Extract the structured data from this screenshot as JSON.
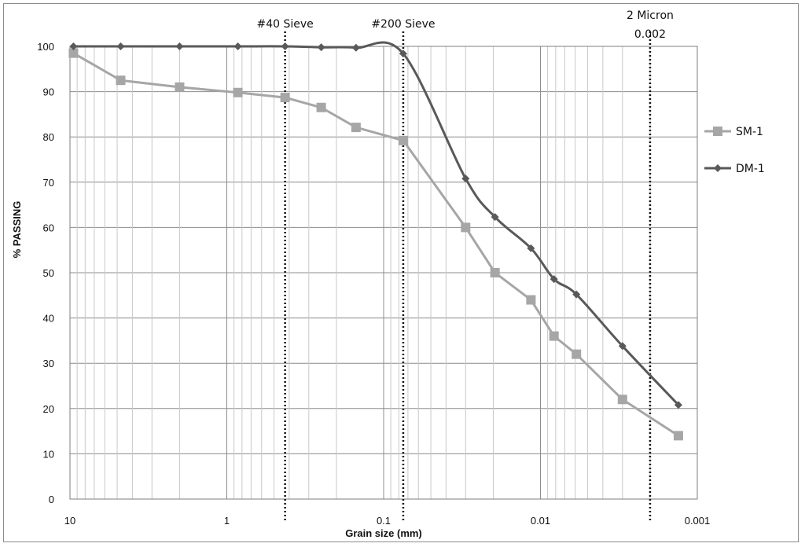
{
  "chart_data": {
    "type": "line",
    "xlabel": "Grain size (mm)",
    "ylabel": "% PASSING",
    "x_scale": "log",
    "x_reversed": true,
    "xlim": [
      10,
      0.001
    ],
    "ylim": [
      0,
      100
    ],
    "x_ticks": [
      "10",
      "1",
      "0.1",
      "0.01",
      "0.001"
    ],
    "x_tick_values": [
      10,
      1,
      0.1,
      0.01,
      0.001
    ],
    "y_ticks": [
      0,
      10,
      20,
      30,
      40,
      50,
      60,
      70,
      80,
      90,
      100
    ],
    "grid": true,
    "legend_position": "right",
    "series": [
      {
        "name": "SM-1",
        "color": "#a6a6a6",
        "marker": "square",
        "smooth": false,
        "x": [
          9.5,
          4.75,
          2.0,
          0.85,
          0.425,
          0.25,
          0.15,
          0.075,
          0.03,
          0.0195,
          0.0115,
          0.0082,
          0.0059,
          0.003,
          0.00132
        ],
        "y": [
          98.5,
          92.5,
          91,
          89.8,
          88.7,
          86.5,
          82.1,
          79.2,
          60,
          50,
          44,
          36,
          32,
          22,
          14
        ]
      },
      {
        "name": "DM-1",
        "color": "#595959",
        "marker": "diamond",
        "smooth": true,
        "x": [
          9.5,
          4.75,
          2.0,
          0.85,
          0.425,
          0.25,
          0.15,
          0.075,
          0.03,
          0.0195,
          0.0115,
          0.0082,
          0.0059,
          0.003,
          0.00132
        ],
        "y": [
          100,
          100,
          100,
          100,
          100,
          99.8,
          99.7,
          98.4,
          70.8,
          62.3,
          55.4,
          48.6,
          45.2,
          33.8,
          20.8
        ]
      }
    ],
    "reference_lines": [
      {
        "x": 0.425,
        "label": "#40 Sieve"
      },
      {
        "x": 0.075,
        "label": "#200 Sieve"
      },
      {
        "x": 0.002,
        "label": "2 Micron",
        "sublabel": "0.002"
      }
    ]
  }
}
